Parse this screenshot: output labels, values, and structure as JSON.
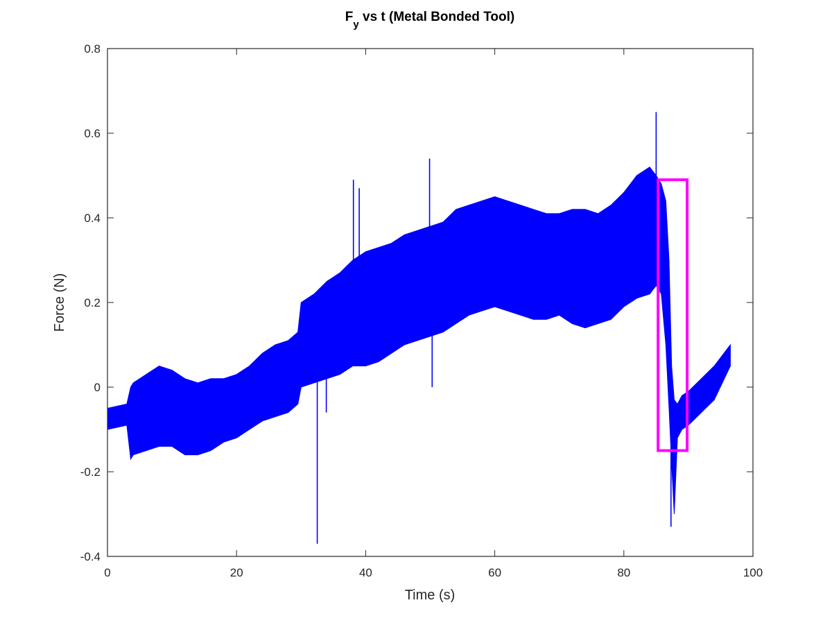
{
  "chart_data": {
    "type": "line",
    "title_main": "F",
    "title_sub": "y",
    "title_rest": " vs t (Metal Bonded Tool)",
    "xlabel": "Time (s)",
    "ylabel": "Force (N)",
    "xlim": [
      0,
      100
    ],
    "ylim": [
      -0.4,
      0.8
    ],
    "xticks": [
      0,
      20,
      40,
      60,
      80,
      100
    ],
    "xtick_labels": [
      "0",
      "20",
      "40",
      "60",
      "80",
      "100"
    ],
    "yticks": [
      -0.4,
      -0.2,
      0,
      0.2,
      0.4,
      0.6,
      0.8
    ],
    "ytick_labels": [
      "-0.4",
      "-0.2",
      "0",
      "0.2",
      "0.4",
      "0.6",
      "0.8"
    ],
    "grid": false,
    "legend": "none",
    "series": [
      {
        "color": "#0000ff",
        "envelope": {
          "t": [
            0,
            3,
            3.6,
            4,
            6,
            8,
            10,
            12,
            14,
            16,
            18,
            20,
            22,
            24,
            26,
            28,
            29.5,
            30,
            32,
            34,
            36,
            38,
            40,
            42,
            44,
            46,
            48,
            50,
            52,
            54,
            56,
            58,
            60,
            62,
            64,
            66,
            68,
            70,
            72,
            74,
            76,
            78,
            80,
            82,
            84,
            85,
            85.8,
            86.5,
            87,
            87.4,
            87.8,
            88.3,
            89,
            90,
            92,
            94,
            96.5
          ],
          "low": [
            -0.1,
            -0.09,
            -0.17,
            -0.16,
            -0.15,
            -0.14,
            -0.14,
            -0.16,
            -0.16,
            -0.15,
            -0.13,
            -0.12,
            -0.1,
            -0.08,
            -0.07,
            -0.06,
            -0.04,
            0.0,
            0.01,
            0.02,
            0.03,
            0.05,
            0.05,
            0.06,
            0.08,
            0.1,
            0.11,
            0.12,
            0.13,
            0.15,
            0.17,
            0.18,
            0.19,
            0.18,
            0.17,
            0.16,
            0.16,
            0.17,
            0.15,
            0.14,
            0.15,
            0.16,
            0.19,
            0.21,
            0.22,
            0.24,
            0.22,
            0.1,
            -0.05,
            -0.18,
            -0.3,
            -0.12,
            -0.1,
            -0.09,
            -0.06,
            -0.03,
            0.05
          ],
          "high": [
            -0.05,
            -0.04,
            0.0,
            0.01,
            0.03,
            0.05,
            0.04,
            0.02,
            0.01,
            0.02,
            0.02,
            0.03,
            0.05,
            0.08,
            0.1,
            0.11,
            0.13,
            0.2,
            0.22,
            0.25,
            0.27,
            0.3,
            0.32,
            0.33,
            0.34,
            0.36,
            0.37,
            0.38,
            0.39,
            0.42,
            0.43,
            0.44,
            0.45,
            0.44,
            0.43,
            0.42,
            0.41,
            0.41,
            0.42,
            0.42,
            0.41,
            0.43,
            0.46,
            0.5,
            0.52,
            0.5,
            0.48,
            0.44,
            0.3,
            0.05,
            -0.03,
            -0.04,
            -0.02,
            -0.01,
            0.02,
            0.05,
            0.1
          ]
        },
        "spikes": [
          {
            "t": 32.5,
            "y": -0.37
          },
          {
            "t": 33.9,
            "y": -0.06
          },
          {
            "t": 38.1,
            "y": 0.49
          },
          {
            "t": 39.0,
            "y": 0.47
          },
          {
            "t": 49.9,
            "y": 0.54
          },
          {
            "t": 50.3,
            "y": 0.0
          },
          {
            "t": 85.0,
            "y": 0.65
          },
          {
            "t": 87.3,
            "y": -0.33
          }
        ]
      }
    ],
    "annotations": [
      {
        "type": "rectangle",
        "color": "#ff00ff",
        "x0": 85.3,
        "x1": 89.8,
        "y0": -0.15,
        "y1": 0.49
      }
    ]
  }
}
